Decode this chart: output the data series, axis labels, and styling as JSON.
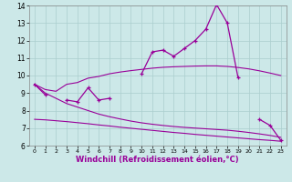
{
  "x": [
    0,
    1,
    2,
    3,
    4,
    5,
    6,
    7,
    8,
    9,
    10,
    11,
    12,
    13,
    14,
    15,
    16,
    17,
    18,
    19,
    20,
    21,
    22,
    23
  ],
  "jagged": [
    9.5,
    8.9,
    null,
    8.6,
    8.5,
    9.3,
    8.6,
    8.7,
    null,
    null,
    10.1,
    11.35,
    11.45,
    11.1,
    11.55,
    12.0,
    12.65,
    14.05,
    13.0,
    9.9,
    null,
    7.5,
    7.15,
    6.3
  ],
  "smooth1": [
    9.5,
    9.2,
    9.1,
    9.5,
    9.6,
    9.85,
    9.95,
    10.1,
    10.2,
    10.28,
    10.35,
    10.42,
    10.47,
    10.5,
    10.52,
    10.54,
    10.55,
    10.55,
    10.52,
    10.46,
    10.38,
    10.27,
    10.14,
    10.0
  ],
  "smooth2": [
    7.5,
    7.47,
    7.42,
    7.37,
    7.31,
    7.25,
    7.18,
    7.12,
    7.05,
    6.99,
    6.93,
    6.87,
    6.81,
    6.75,
    6.7,
    6.64,
    6.59,
    6.54,
    6.49,
    6.44,
    6.39,
    6.34,
    6.3,
    6.25
  ],
  "smooth3": [
    9.5,
    9.0,
    8.7,
    8.4,
    8.2,
    8.0,
    7.8,
    7.65,
    7.52,
    7.4,
    7.3,
    7.22,
    7.15,
    7.09,
    7.04,
    7.0,
    6.96,
    6.92,
    6.88,
    6.82,
    6.75,
    6.67,
    6.58,
    6.47
  ],
  "line_color": "#990099",
  "bg_color": "#cce8e8",
  "grid_color": "#aacece",
  "xlabel": "Windchill (Refroidissement éolien,°C)",
  "ylim": [
    6,
    14
  ],
  "xlim": [
    -0.5,
    23.5
  ],
  "yticks": [
    6,
    7,
    8,
    9,
    10,
    11,
    12,
    13,
    14
  ],
  "xticks": [
    0,
    1,
    2,
    3,
    4,
    5,
    6,
    7,
    8,
    9,
    10,
    11,
    12,
    13,
    14,
    15,
    16,
    17,
    18,
    19,
    20,
    21,
    22,
    23
  ]
}
